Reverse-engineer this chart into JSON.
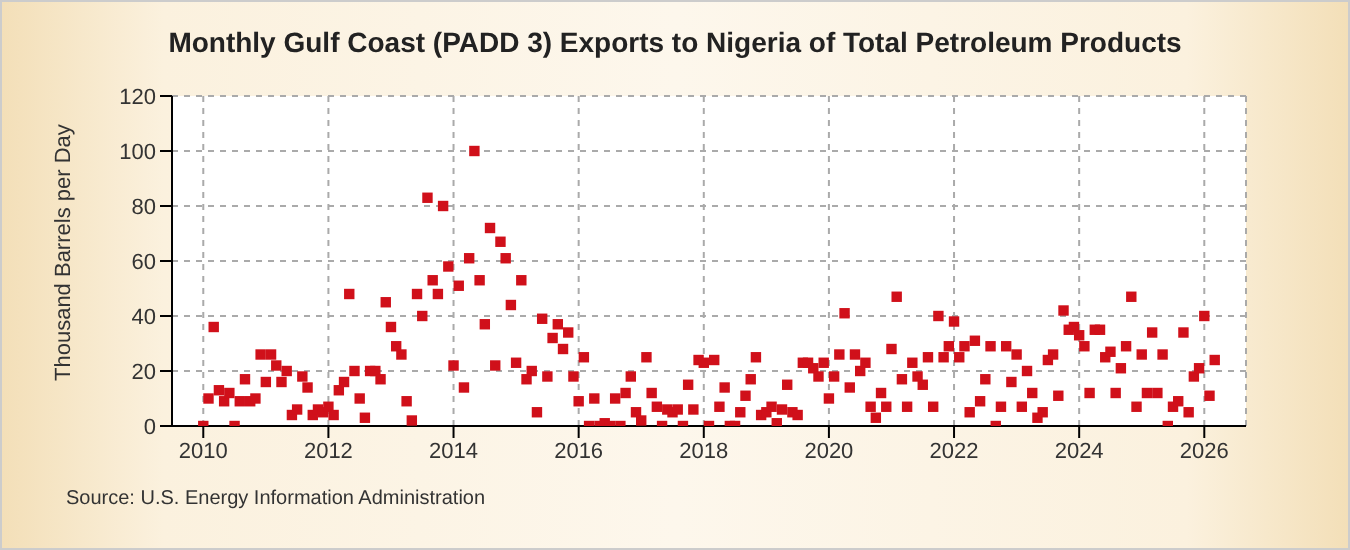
{
  "chart_data": {
    "type": "scatter",
    "title": "Monthly Gulf Coast (PADD 3) Exports to Nigeria of Total Petroleum Products",
    "ylabel": "Thousand Barrels per Day",
    "annotations": [
      "Source: U.S. Energy Information Administration"
    ],
    "x": [
      "2010-01",
      "2010-02",
      "2010-03",
      "2010-04",
      "2010-05",
      "2010-06",
      "2010-07",
      "2010-08",
      "2010-09",
      "2010-10",
      "2010-11",
      "2010-12",
      "2011-01",
      "2011-02",
      "2011-03",
      "2011-04",
      "2011-05",
      "2011-06",
      "2011-07",
      "2011-08",
      "2011-09",
      "2011-10",
      "2011-11",
      "2011-12",
      "2012-01",
      "2012-02",
      "2012-03",
      "2012-04",
      "2012-05",
      "2012-06",
      "2012-07",
      "2012-08",
      "2012-09",
      "2012-10",
      "2012-11",
      "2012-12",
      "2013-01",
      "2013-02",
      "2013-03",
      "2013-04",
      "2013-05",
      "2013-06",
      "2013-07",
      "2013-08",
      "2013-09",
      "2013-10",
      "2013-11",
      "2013-12",
      "2014-01",
      "2014-02",
      "2014-03",
      "2014-04",
      "2014-05",
      "2014-06",
      "2014-07",
      "2014-08",
      "2014-09",
      "2014-10",
      "2014-11",
      "2014-12",
      "2015-01",
      "2015-02",
      "2015-03",
      "2015-04",
      "2015-05",
      "2015-06",
      "2015-07",
      "2015-08",
      "2015-09",
      "2015-10",
      "2015-11",
      "2015-12",
      "2016-01",
      "2016-02",
      "2016-03",
      "2016-04",
      "2016-05",
      "2016-06",
      "2016-07",
      "2016-08",
      "2016-09",
      "2016-10",
      "2016-11",
      "2016-12",
      "2017-01",
      "2017-02",
      "2017-03",
      "2017-04",
      "2017-05",
      "2017-06",
      "2017-07",
      "2017-08",
      "2017-09",
      "2017-10",
      "2017-11",
      "2017-12",
      "2018-01",
      "2018-02",
      "2018-03",
      "2018-04",
      "2018-05",
      "2018-06",
      "2018-07",
      "2018-08",
      "2018-09",
      "2018-10",
      "2018-11",
      "2018-12",
      "2019-01",
      "2019-02",
      "2019-03",
      "2019-04",
      "2019-05",
      "2019-06",
      "2019-07",
      "2019-08",
      "2019-09",
      "2019-10",
      "2019-11",
      "2019-12",
      "2020-01",
      "2020-02",
      "2020-03",
      "2020-04",
      "2020-05",
      "2020-06",
      "2020-07",
      "2020-08",
      "2020-09",
      "2020-10",
      "2020-11",
      "2020-12",
      "2021-01",
      "2021-02",
      "2021-03",
      "2021-04",
      "2021-05",
      "2021-06",
      "2021-07",
      "2021-08",
      "2021-09",
      "2021-10",
      "2021-11",
      "2021-12",
      "2022-01",
      "2022-02",
      "2022-03",
      "2022-04",
      "2022-05",
      "2022-06",
      "2022-07",
      "2022-08",
      "2022-09",
      "2022-10",
      "2022-11",
      "2022-12",
      "2023-01",
      "2023-02",
      "2023-03",
      "2023-04",
      "2023-05",
      "2023-06",
      "2023-07",
      "2023-08",
      "2023-09",
      "2023-10",
      "2023-11",
      "2023-12",
      "2024-01",
      "2024-02",
      "2024-03",
      "2024-04",
      "2024-05",
      "2024-06",
      "2024-07",
      "2024-08",
      "2024-09",
      "2024-10",
      "2024-11",
      "2024-12",
      "2025-01",
      "2025-02",
      "2025-03",
      "2025-04",
      "2025-05",
      "2025-06",
      "2025-07",
      "2025-08",
      "2025-09",
      "2025-10",
      "2025-11",
      "2025-12",
      "2026-01",
      "2026-02",
      "2026-03"
    ],
    "series": [
      {
        "color": "#d0101a",
        "values": [
          0,
          10,
          36,
          13,
          9,
          12,
          0,
          9,
          17,
          9,
          10,
          26,
          16,
          26,
          22,
          16,
          20,
          4,
          6,
          18,
          14,
          4,
          6,
          5,
          7,
          4,
          13,
          16,
          48,
          20,
          10,
          3,
          20,
          20,
          17,
          45,
          36,
          29,
          26,
          9,
          2,
          48,
          40,
          83,
          53,
          48,
          80,
          58,
          22,
          51,
          14,
          61,
          100,
          53,
          37,
          72,
          22,
          67,
          61,
          44,
          23,
          53,
          17,
          20,
          5,
          39,
          18,
          32,
          37,
          28,
          34,
          18,
          9,
          25,
          0,
          10,
          0,
          1,
          0,
          10,
          0,
          12,
          18,
          5,
          2,
          25,
          12,
          7,
          0,
          6,
          5,
          6,
          0,
          15,
          6,
          24,
          23,
          0,
          24,
          7,
          14,
          0,
          0,
          5,
          11,
          17,
          25,
          4,
          5,
          7,
          1,
          6,
          15,
          5,
          4,
          23,
          23,
          21,
          18,
          23,
          10,
          18,
          26,
          41,
          14,
          26,
          20,
          23,
          7,
          3,
          12,
          7,
          28,
          47,
          17,
          7,
          23,
          18,
          15,
          25,
          7,
          40,
          25,
          29,
          38,
          25,
          29,
          5,
          31,
          9,
          17,
          29,
          0,
          7,
          29,
          16,
          26,
          7,
          20,
          12,
          3,
          5,
          24,
          26,
          11,
          42,
          35,
          36,
          33,
          29,
          12,
          35,
          35,
          25,
          27,
          12,
          21,
          29,
          47,
          7,
          26,
          12,
          34,
          12,
          26,
          0,
          7,
          9,
          34,
          5,
          18,
          21,
          40,
          11,
          24
        ]
      }
    ],
    "xlim": [
      "2009-07",
      "2026-09"
    ],
    "xticks": [
      "2010",
      "2012",
      "2014",
      "2016",
      "2018",
      "2020",
      "2022",
      "2024",
      "2026"
    ],
    "ylim": [
      0,
      120
    ],
    "yticks": [
      0,
      20,
      40,
      60,
      80,
      100,
      120
    ],
    "grid": true,
    "marker": "square"
  }
}
